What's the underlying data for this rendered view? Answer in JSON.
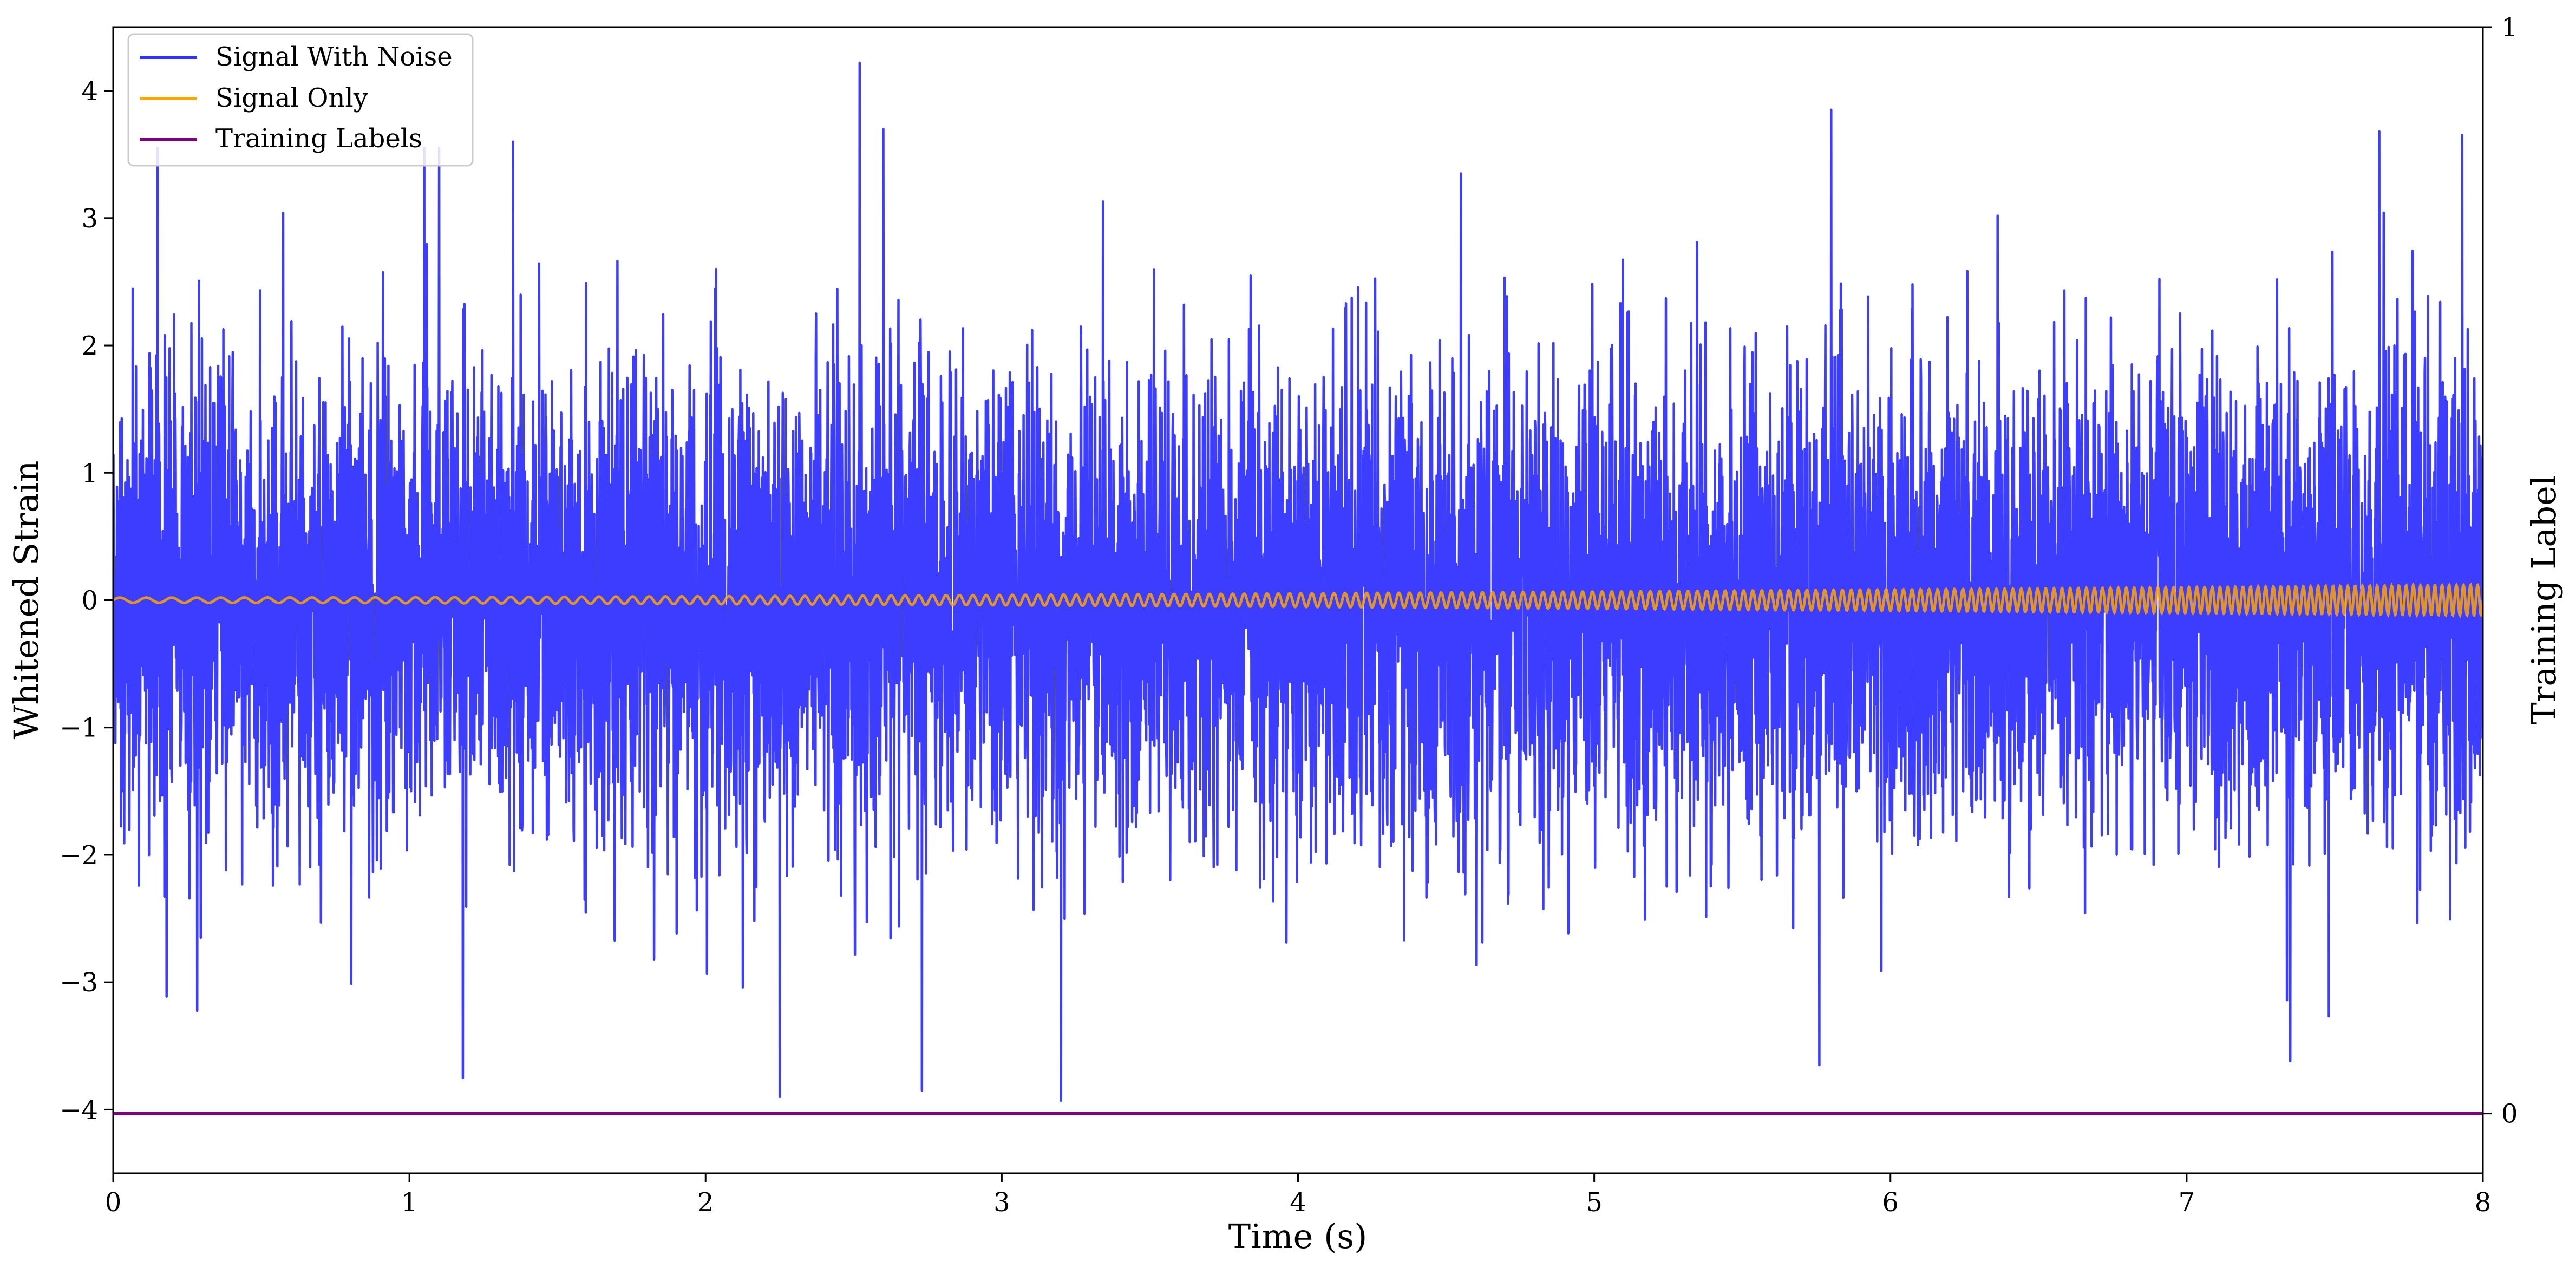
{
  "chart_data": {
    "type": "line",
    "title": "",
    "xlabel": "Time (s)",
    "ylabel": "Whitened Strain",
    "y2label": "Training Label",
    "xlim": [
      0,
      8
    ],
    "ylim": [
      -4.5,
      4.5
    ],
    "y2lim": [
      -0.055,
      1.0
    ],
    "xticks": [
      0,
      1,
      2,
      3,
      4,
      5,
      6,
      7,
      8
    ],
    "xtick_labels": [
      "0",
      "1",
      "2",
      "3",
      "4",
      "5",
      "6",
      "7",
      "8"
    ],
    "yticks": [
      -4,
      -3,
      -2,
      -1,
      0,
      1,
      2,
      3,
      4
    ],
    "ytick_labels": [
      "−4",
      "−3",
      "−2",
      "−1",
      "0",
      "1",
      "2",
      "3",
      "4"
    ],
    "y2ticks": [
      0,
      1
    ],
    "y2tick_labels": [
      "0",
      "1"
    ],
    "grid": false,
    "legend_position": "top-left",
    "series": [
      {
        "name": "Signal With Noise",
        "color": "#3333ff",
        "axis": "left",
        "description": "dense noisy strain, approx. standard deviation 0.9, extremes between -3.93 and 4.22",
        "noise_std": 0.9,
        "peaks": [
          {
            "x": 0.15,
            "y": 3.55
          },
          {
            "x": 1.05,
            "y": 3.55
          },
          {
            "x": 1.1,
            "y": 3.55
          },
          {
            "x": 1.35,
            "y": 3.6
          },
          {
            "x": 2.52,
            "y": 4.22
          },
          {
            "x": 2.6,
            "y": 3.7
          },
          {
            "x": 4.55,
            "y": 3.35
          },
          {
            "x": 5.8,
            "y": 3.85
          },
          {
            "x": 7.65,
            "y": 3.68
          },
          {
            "x": 7.93,
            "y": 3.65
          },
          {
            "x": 2.25,
            "y": -3.9
          },
          {
            "x": 2.73,
            "y": -3.85
          },
          {
            "x": 3.2,
            "y": -3.93
          },
          {
            "x": 1.18,
            "y": -3.75
          },
          {
            "x": 5.76,
            "y": -3.65
          },
          {
            "x": 7.35,
            "y": -3.62
          }
        ]
      },
      {
        "name": "Signal Only",
        "color": "#ffa500",
        "axis": "left",
        "description": "chirp, amplitude growing from ~0.02 to ~0.12 and frequency rising toward t=8",
        "chirp": {
          "amplitude_start": 0.02,
          "amplitude_end": 0.12,
          "freq_start": 11,
          "freq_end": 42
        }
      },
      {
        "name": "Training Labels",
        "color": "#800080",
        "axis": "right",
        "x": [
          0,
          8
        ],
        "y": [
          0,
          0
        ]
      }
    ]
  }
}
